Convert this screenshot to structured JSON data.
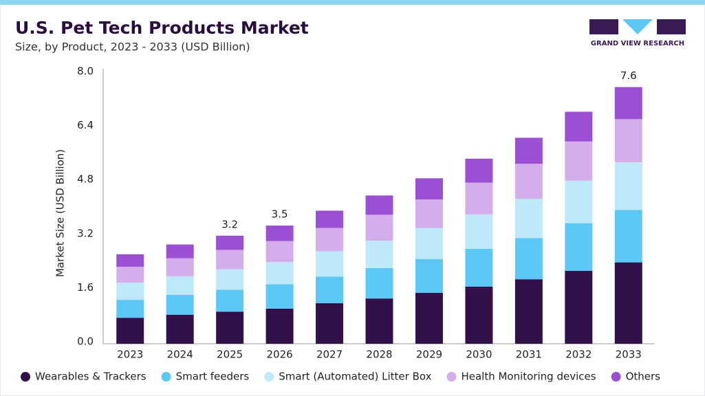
{
  "chart_data": {
    "type": "stacked_bar",
    "title": "U.S. Pet Tech Products Market",
    "subtitle": "Size, by Product, 2023 - 2033 (USD Billion)",
    "y_label": "Market Size (USD Billion)",
    "brand": "GRAND VIEW RESEARCH",
    "categories": [
      "2023",
      "2024",
      "2025",
      "2026",
      "2027",
      "2028",
      "2029",
      "2030",
      "2031",
      "2032",
      "2033"
    ],
    "series": [
      {
        "name": "Wearables & Trackers",
        "color": "#32104a",
        "values": [
          0.77,
          0.86,
          0.95,
          1.04,
          1.2,
          1.34,
          1.51,
          1.69,
          1.91,
          2.16,
          2.41
        ]
      },
      {
        "name": "Smart feeders",
        "color": "#5bc8f5",
        "values": [
          0.53,
          0.59,
          0.65,
          0.72,
          0.79,
          0.9,
          1.0,
          1.12,
          1.22,
          1.41,
          1.55
        ]
      },
      {
        "name": "Smart (Automated) Litter Box",
        "color": "#bde9f9",
        "values": [
          0.51,
          0.55,
          0.61,
          0.66,
          0.75,
          0.81,
          0.92,
          1.02,
          1.16,
          1.26,
          1.41
        ]
      },
      {
        "name": "Health Monitoring devices",
        "color": "#d3aeea",
        "values": [
          0.47,
          0.53,
          0.57,
          0.62,
          0.69,
          0.77,
          0.84,
          0.94,
          1.04,
          1.16,
          1.28
        ]
      },
      {
        "name": "Others",
        "color": "#9b4fd3",
        "values": [
          0.37,
          0.41,
          0.42,
          0.46,
          0.51,
          0.57,
          0.63,
          0.71,
          0.77,
          0.88,
          0.95
        ]
      }
    ],
    "totals": [
      {
        "category": "2025",
        "value": 3.2
      },
      {
        "category": "2026",
        "value": 3.5
      },
      {
        "category": "2033",
        "value": 7.6
      }
    ],
    "ylim": [
      0,
      8
    ],
    "yticks": [
      {
        "value": 0,
        "label": "0.0"
      },
      1.6,
      3.2,
      4.8,
      6.4,
      {
        "value": 8,
        "label": "8.0"
      }
    ],
    "grid": false
  }
}
